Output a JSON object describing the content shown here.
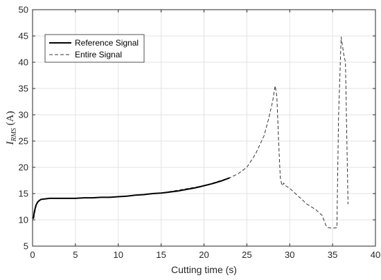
{
  "chart_data": {
    "type": "line",
    "title": "",
    "xlabel": "Cutting time (s)",
    "ylabel_main": "I",
    "ylabel_sub": "RMS",
    "ylabel_unit": " (A)",
    "xlim": [
      0,
      40
    ],
    "ylim": [
      5,
      50
    ],
    "xticks": [
      0,
      5,
      10,
      15,
      20,
      25,
      30,
      35,
      40
    ],
    "yticks": [
      5,
      10,
      15,
      20,
      25,
      30,
      35,
      40,
      45,
      50
    ],
    "grid": true,
    "legend_position": "top-left",
    "series": [
      {
        "name": "Reference Signal",
        "style": "solid",
        "color": "#000000",
        "x": [
          0.1,
          0.2,
          0.4,
          0.6,
          0.8,
          1.0,
          1.5,
          2,
          3,
          4,
          5,
          6,
          7,
          8,
          9,
          10,
          11,
          12,
          13,
          14,
          15,
          16,
          17,
          18,
          19,
          20,
          21,
          22,
          23
        ],
        "y": [
          10.2,
          11.5,
          12.8,
          13.4,
          13.7,
          13.9,
          14.0,
          14.1,
          14.1,
          14.1,
          14.1,
          14.2,
          14.2,
          14.3,
          14.3,
          14.4,
          14.5,
          14.7,
          14.8,
          15.0,
          15.1,
          15.3,
          15.5,
          15.8,
          16.1,
          16.5,
          16.9,
          17.4,
          18.0
        ]
      },
      {
        "name": "Entire Signal",
        "style": "dashed",
        "color": "#333333",
        "x": [
          0.1,
          0.5,
          1,
          2,
          5,
          10,
          15,
          20,
          23,
          24,
          25,
          26,
          27,
          27.5,
          28,
          28.3,
          28.5,
          28.7,
          28.9,
          29.1,
          29.3,
          29.5,
          30,
          31,
          32,
          33,
          33.8,
          34.2,
          34.5,
          35,
          35.5,
          35.7,
          36.0,
          36.3,
          36.5,
          36.8
        ],
        "y": [
          10.2,
          13.2,
          13.9,
          14.1,
          14.1,
          14.4,
          15.1,
          16.5,
          18.0,
          18.8,
          20.0,
          22.5,
          26.0,
          29.0,
          32.5,
          35.5,
          33.5,
          25.0,
          18.0,
          16.5,
          17.0,
          16.5,
          16.0,
          14.5,
          13.0,
          12.0,
          10.8,
          9.0,
          8.5,
          8.4,
          8.5,
          30.0,
          44.8,
          41.5,
          40.0,
          13.0
        ]
      }
    ]
  }
}
